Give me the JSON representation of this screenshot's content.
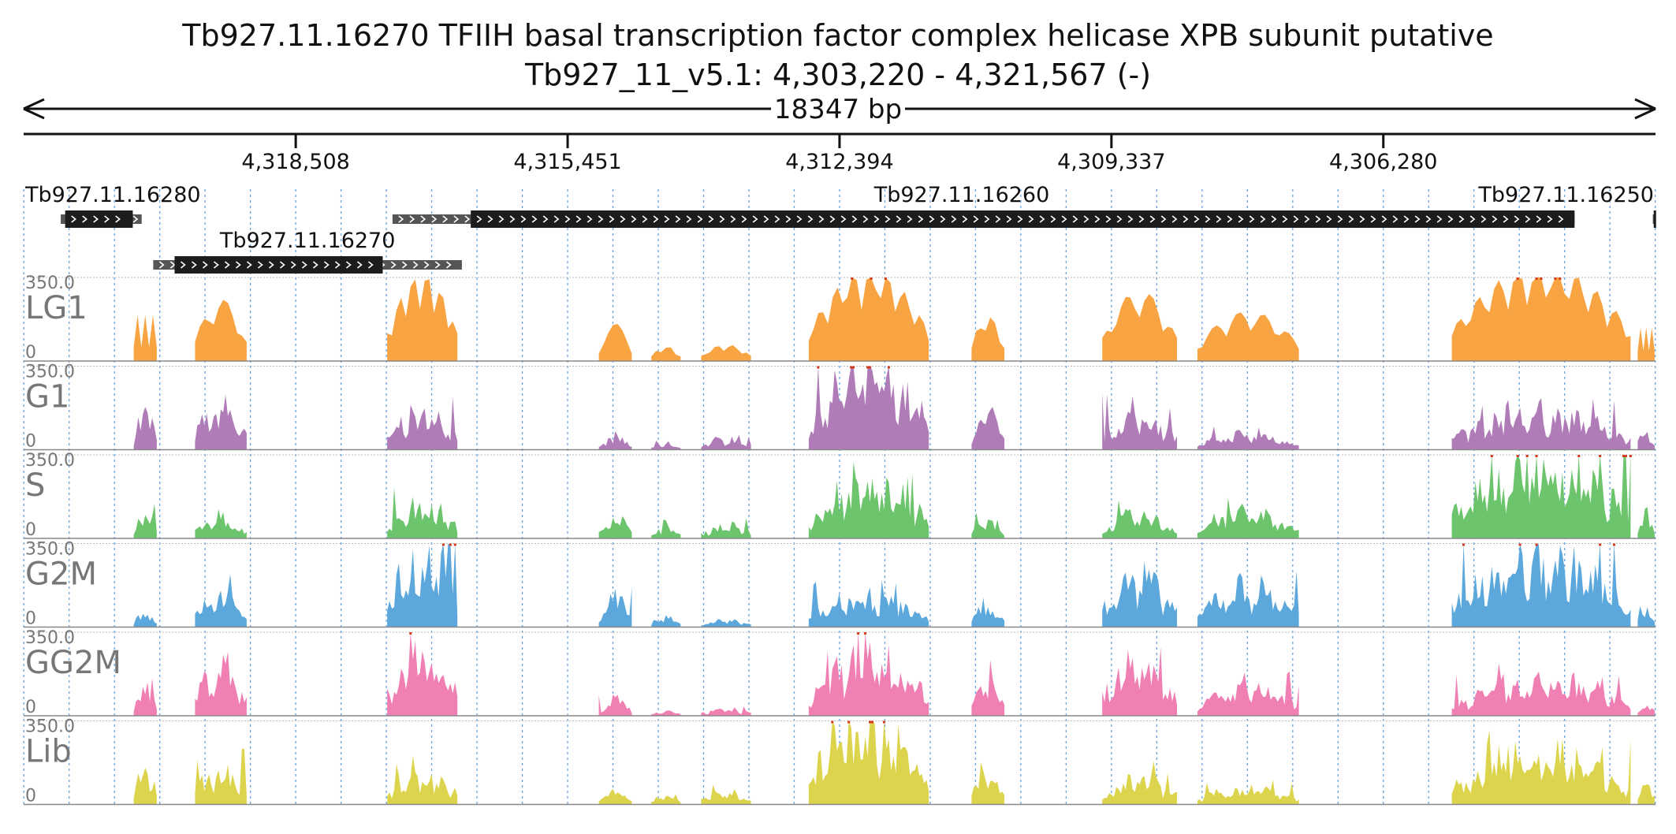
{
  "chart_data": {
    "type": "area",
    "title": "Tb927.11.16270  TFIIH basal transcription factor complex helicase XPB subunit  putative",
    "subtitle": "Tb927_11_v5.1: 4,303,220 - 4,321,567 (-)",
    "span_label": "18347 bp",
    "region": {
      "start": 4303220,
      "end": 4321567,
      "strand": "-"
    },
    "x_ticks": [
      4318508,
      4315451,
      4312394,
      4309337,
      4306280
    ],
    "x_tick_labels": [
      "4,318,508",
      "4,315,451",
      "4,312,394",
      "4,309,337",
      "4,306,280"
    ],
    "genes": [
      {
        "name": "Tb927.11.16280",
        "utr_start": 4321150,
        "cds_start": 4321100,
        "cds_end": 4320340,
        "utr_end": 4320240,
        "row": 0,
        "label_anchor": "start"
      },
      {
        "name": "Tb927.11.16270",
        "utr_start": 4320110,
        "cds_start": 4319870,
        "cds_end": 4317530,
        "utr_end": 4316640,
        "row": 1,
        "label_anchor": "middle"
      },
      {
        "name": "Tb927.11.16260",
        "utr_start": 4317420,
        "cds_start": 4316540,
        "cds_end": 4304130,
        "utr_end": 4304130,
        "row": 0,
        "label_anchor": "middle"
      },
      {
        "name": "Tb927.11.16250",
        "utr_start": 4303250,
        "cds_start": 4303240,
        "cds_end": 4303220,
        "utr_end": 4303220,
        "row": 0,
        "label_anchor": "end"
      }
    ],
    "tracks": [
      {
        "name": "LG1",
        "color": "#f9a443",
        "max": 350.0
      },
      {
        "name": "G1",
        "color": "#b07cb8",
        "max": 350.0
      },
      {
        "name": "S",
        "color": "#6cc46c",
        "max": 350.0
      },
      {
        "name": "G2M",
        "color": "#5ca8dc",
        "max": 350.0
      },
      {
        "name": "GG2M",
        "color": "#f07fb4",
        "max": 350.0
      },
      {
        "name": "Lib",
        "color": "#ddd44e",
        "max": 350.0
      }
    ],
    "ylim": [
      0,
      350.0
    ],
    "y_min_label": "0",
    "y_max_label": "350.0",
    "clip_marker_color": "#d43a1c",
    "coverage_segments": [
      {
        "start": 4320330,
        "end": 4320070,
        "level": 0.55,
        "shape": "bumpy",
        "peaks": 3
      },
      {
        "start": 4319640,
        "end": 4319060,
        "level": 0.75,
        "shape": "mound",
        "peaks": 2
      },
      {
        "start": 4317480,
        "end": 4316690,
        "level": 1.05,
        "shape": "mound",
        "peaks": 5
      },
      {
        "start": 4315100,
        "end": 4314730,
        "level": 0.45,
        "shape": "mound",
        "peaks": 1
      },
      {
        "start": 4314510,
        "end": 4314180,
        "level": 0.18,
        "shape": "low",
        "peaks": 2
      },
      {
        "start": 4313950,
        "end": 4313390,
        "level": 0.2,
        "shape": "low",
        "peaks": 3
      },
      {
        "start": 4312740,
        "end": 4311390,
        "level": 1.1,
        "shape": "mound",
        "peaks": 7
      },
      {
        "start": 4310910,
        "end": 4310540,
        "level": 0.55,
        "shape": "mound",
        "peaks": 2
      },
      {
        "start": 4309440,
        "end": 4308600,
        "level": 0.85,
        "shape": "mound",
        "peaks": 3
      },
      {
        "start": 4308370,
        "end": 4307230,
        "level": 0.6,
        "shape": "mound",
        "peaks": 4
      },
      {
        "start": 4305510,
        "end": 4303500,
        "level": 1.15,
        "shape": "mound",
        "peaks": 9
      },
      {
        "start": 4303420,
        "end": 4303230,
        "level": 0.4,
        "shape": "bumpy",
        "peaks": 2
      }
    ],
    "grid": "dotted vertical",
    "legend": "none"
  }
}
